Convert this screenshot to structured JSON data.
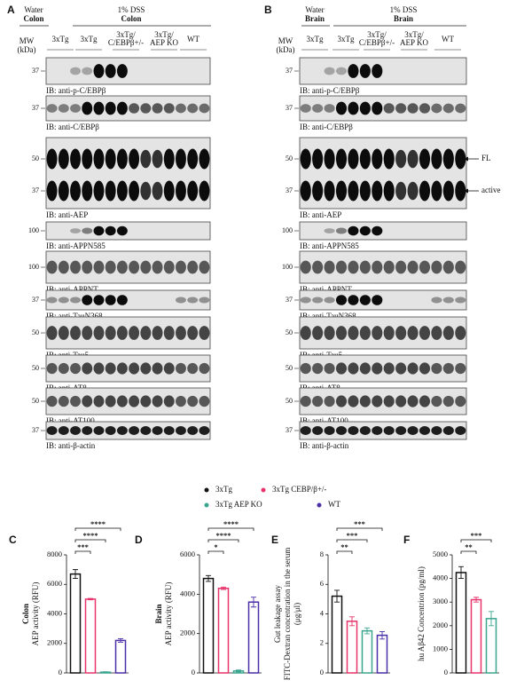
{
  "panel_a": {
    "letter": "A",
    "control": {
      "label": "Water",
      "tissue": "Colon"
    },
    "treatment": {
      "label": "1% DSS",
      "tissue": "Colon"
    },
    "mw_label": [
      "MW",
      "(kDa)"
    ],
    "lanes": [
      [
        "3xTg"
      ],
      [
        "3xTg"
      ],
      [
        "3xTg/",
        "C/EBPβ+/-"
      ],
      [
        "3xTg/",
        "AEP KO"
      ],
      [
        "WT"
      ]
    ],
    "blots": [
      {
        "mw": [
          "37"
        ],
        "label": "IB: anti-p-C/EBPβ"
      },
      {
        "mw": [
          "37"
        ],
        "label": "IB: anti-C/EBPβ"
      },
      {
        "mw": [
          "50",
          "37"
        ],
        "label": "IB: anti-AEP"
      },
      {
        "mw": [
          "100"
        ],
        "label": "IB: anti-APPN585"
      },
      {
        "mw": [
          "100"
        ],
        "label": "IB: anti-APPNT"
      },
      {
        "mw": [
          "37"
        ],
        "label": "IB: anti-TauN368"
      },
      {
        "mw": [
          "50"
        ],
        "label": "IB: anti-Tau5"
      },
      {
        "mw": [
          "50"
        ],
        "label": "IB: anti-AT8"
      },
      {
        "mw": [
          "50"
        ],
        "label": "IB: anti-AT100"
      },
      {
        "mw": [
          "37"
        ],
        "label": "IB: anti-β-actin"
      }
    ]
  },
  "panel_b": {
    "letter": "B",
    "control": {
      "label": "Water",
      "tissue": "Brain"
    },
    "treatment": {
      "label": "1% DSS",
      "tissue": "Brain"
    },
    "mw_label": [
      "MW",
      "(kDa)"
    ],
    "lanes": [
      [
        "3xTg"
      ],
      [
        "3xTg"
      ],
      [
        "3xTg/",
        "C/EBPβ+/-"
      ],
      [
        "3xTg/",
        "AEP KO"
      ],
      [
        "WT"
      ]
    ],
    "blots": [
      {
        "mw": [
          "37"
        ],
        "label": "IB: anti-p-C/EBPβ"
      },
      {
        "mw": [
          "37"
        ],
        "label": "IB: anti-C/EBPβ"
      },
      {
        "mw": [
          "50",
          "37"
        ],
        "label": "IB: anti-AEP",
        "markers": [
          "FL",
          "active"
        ]
      },
      {
        "mw": [
          "100"
        ],
        "label": "IB: anti-APPN585"
      },
      {
        "mw": [
          "100"
        ],
        "label": "IB: anti-APPNT"
      },
      {
        "mw": [
          "37"
        ],
        "label": "IB: anti-TauN368"
      },
      {
        "mw": [
          "50"
        ],
        "label": "IB: anti-Tau5"
      },
      {
        "mw": [
          "50"
        ],
        "label": "IB: anti-AT8"
      },
      {
        "mw": [
          "50"
        ],
        "label": "IB: anti-AT100"
      },
      {
        "mw": [
          "37"
        ],
        "label": "IB: anti-β-actin"
      }
    ]
  },
  "legend": [
    {
      "name": "3xTg",
      "color": "#111111"
    },
    {
      "name": "3xTg CEBP/β+/-",
      "color": "#e8336b"
    },
    {
      "name": "3xTg AEP KO",
      "color": "#3aa58e"
    },
    {
      "name": "WT",
      "color": "#4b2fa8"
    }
  ],
  "chart_data": [
    {
      "type": "bar",
      "panel": "C",
      "ylabel_heading": "Colon",
      "ylabel": [
        "AEP activity (RFU)"
      ],
      "values": [
        6700,
        5000,
        50,
        2200
      ],
      "errors": [
        300,
        50,
        30,
        120
      ],
      "ylim": [
        0,
        8000
      ],
      "yticks": [
        0,
        2000,
        4000,
        6000,
        8000
      ],
      "significance": [
        "***",
        "****",
        "****"
      ]
    },
    {
      "type": "bar",
      "panel": "D",
      "ylabel_heading": "Brain",
      "ylabel": [
        "AEP activity (RFU)"
      ],
      "values": [
        4800,
        4300,
        100,
        3600
      ],
      "errors": [
        150,
        60,
        50,
        250
      ],
      "ylim": [
        0,
        6000
      ],
      "yticks": [
        0,
        2000,
        4000,
        6000
      ],
      "significance": [
        "*",
        "****",
        "****"
      ]
    },
    {
      "type": "bar",
      "panel": "E",
      "ylabel": [
        "Gut leakage assay",
        "FITC-Dextran concentration in the serum",
        "(μg/μl)"
      ],
      "values": [
        5.2,
        3.5,
        2.85,
        2.55
      ],
      "errors": [
        0.4,
        0.3,
        0.2,
        0.25
      ],
      "ylim": [
        0,
        8
      ],
      "yticks": [
        0,
        2,
        4,
        6,
        8
      ],
      "significance": [
        "**",
        "***",
        "***"
      ]
    },
    {
      "type": "bar",
      "panel": "F",
      "ylabel": [
        "hu Aβ42 Concentrion (pg/ml)"
      ],
      "values": [
        4250,
        3100,
        2300
      ],
      "errors": [
        250,
        100,
        300
      ],
      "ylim": [
        0,
        5000
      ],
      "yticks": [
        0,
        1000,
        2000,
        3000,
        4000,
        5000
      ],
      "significance": [
        "**",
        "***"
      ]
    }
  ]
}
